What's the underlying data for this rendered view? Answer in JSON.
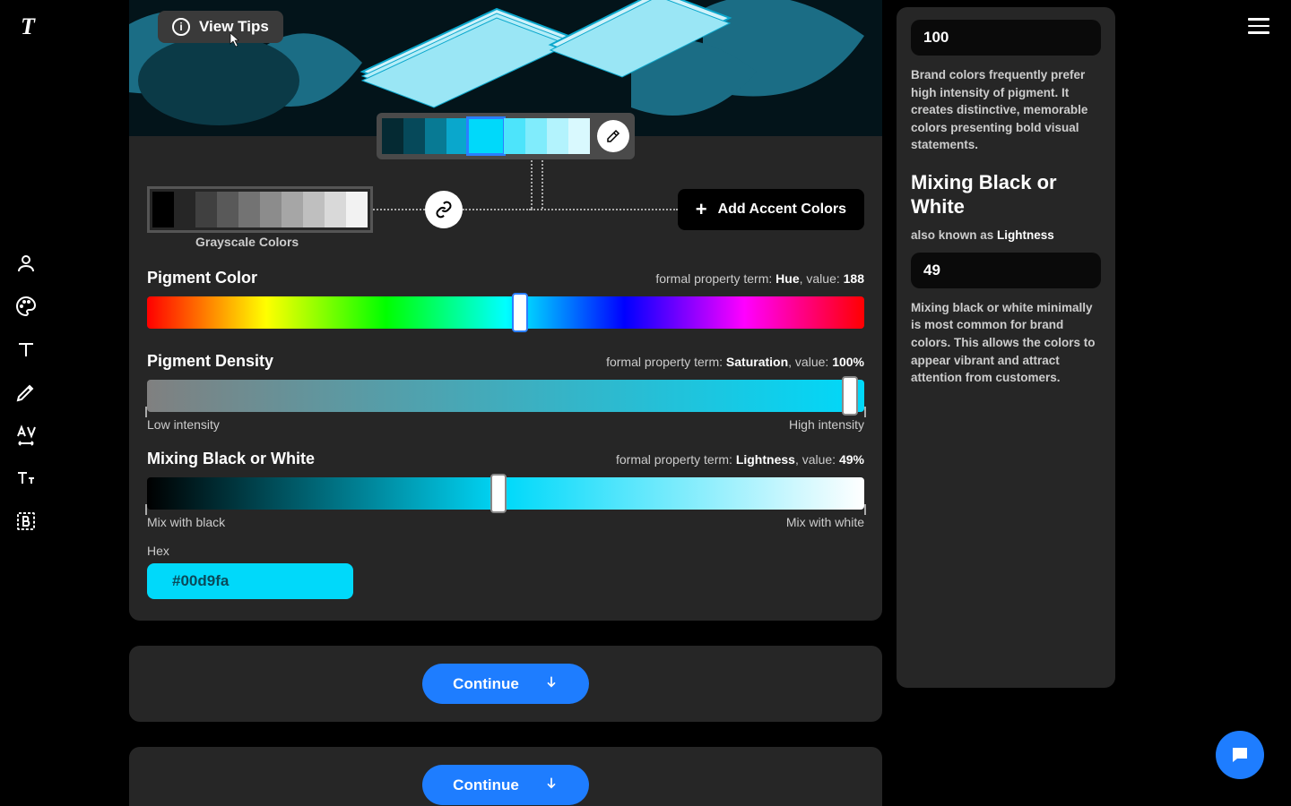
{
  "topbar": {
    "view_tips": "View Tips"
  },
  "palette": {
    "swatches": [
      "#052a33",
      "#06495a",
      "#087a94",
      "#0aa7cc",
      "#00d9fa",
      "#4de4fb",
      "#80ecfc",
      "#b3f3fd",
      "#d9f9fe"
    ],
    "selected_index": 4
  },
  "grayscale": {
    "swatches": [
      "#000000",
      "#262626",
      "#404040",
      "#595959",
      "#737373",
      "#8c8c8c",
      "#a6a6a6",
      "#bfbfbf",
      "#d9d9d9",
      "#f2f2f2"
    ],
    "label": "Grayscale Colors"
  },
  "add_accent": "Add Accent Colors",
  "sliders": {
    "hue": {
      "title": "Pigment Color",
      "meta_prefix": "formal property term: ",
      "term": "Hue",
      "value_label": ", value: ",
      "value": "188",
      "thumb_pct": 52
    },
    "sat": {
      "title": "Pigment Density",
      "meta_prefix": "formal property term: ",
      "term": "Saturation",
      "value_label": ", value: ",
      "value": "100%",
      "low": "Low intensity",
      "high": "High intensity",
      "thumb_pct": 98
    },
    "light": {
      "title": "Mixing Black or White",
      "meta_prefix": "formal property term: ",
      "term": "Lightness",
      "value_label": ", value: ",
      "value": "49%",
      "low": "Mix with black",
      "high": "Mix with white",
      "thumb_pct": 49
    }
  },
  "hex": {
    "label": "Hex",
    "value": "#00d9fa",
    "bg": "#00d9fa",
    "fg": "#0a4a5a"
  },
  "continue": "Continue",
  "side": {
    "input1": "100",
    "para1": "Brand colors frequently prefer high intensity of pigment. It creates distinctive, memorable colors presenting bold visual statements.",
    "heading": "Mixing Black or White",
    "sub_prefix": "also known as ",
    "sub_term": "Lightness",
    "input2": "49",
    "para2": "Mixing black or white minimally is most common for brand colors. This allows the colors to appear vibrant and attract attention from customers."
  },
  "colors": {
    "panel_bg": "#262626",
    "accent": "#1e7dff",
    "art_bg": "#03141a",
    "art_leaf": "#1b6d85",
    "art_paper": "#d0f2fa"
  }
}
